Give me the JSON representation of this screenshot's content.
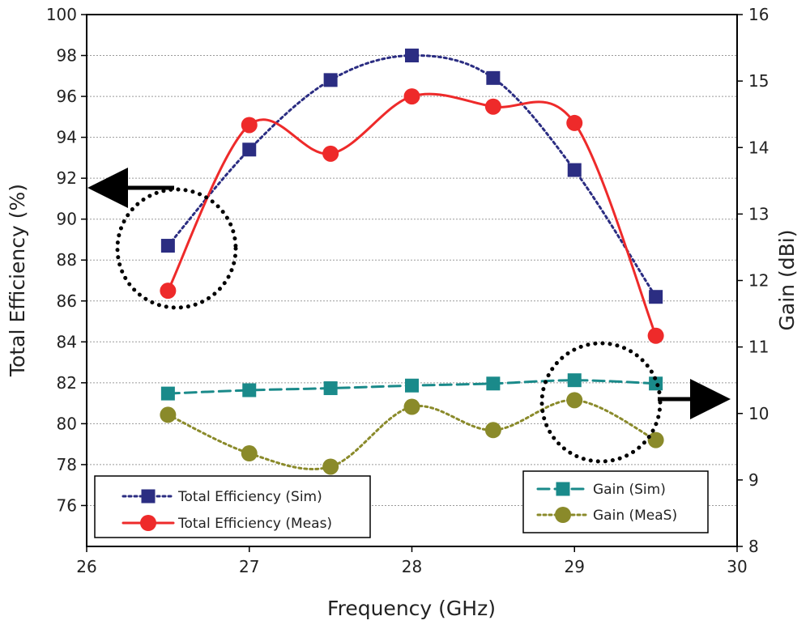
{
  "chart_data": {
    "type": "line",
    "xlabel": "Frequency (GHz)",
    "ylabel_left": "Total Efficiency (%)",
    "ylabel_right": "Gain (dBi)",
    "xlim": [
      26,
      30
    ],
    "ylim_left": [
      74,
      100
    ],
    "ylim_right": [
      8,
      16
    ],
    "x_ticks": [
      "26",
      "27",
      "28",
      "29",
      "30"
    ],
    "y_left_ticks": [
      "76",
      "78",
      "80",
      "82",
      "84",
      "86",
      "88",
      "90",
      "92",
      "94",
      "96",
      "98",
      "100"
    ],
    "y_right_ticks": [
      "8",
      "9",
      "10",
      "11",
      "12",
      "13",
      "14",
      "15",
      "16"
    ],
    "grid": "horizontal dotted",
    "x": [
      26.5,
      27,
      27.5,
      28,
      28.5,
      29,
      29.5
    ],
    "series": [
      {
        "name": "Total Efficiency (Sim)",
        "axis": "left",
        "values": [
          88.7,
          93.4,
          96.8,
          98.0,
          96.9,
          92.4,
          86.2
        ],
        "color": "#2b2d82",
        "marker": "square",
        "line": "dotted"
      },
      {
        "name": "Total Efficiency (Meas)",
        "axis": "left",
        "values": [
          86.5,
          94.6,
          93.2,
          96.0,
          95.5,
          94.7,
          84.3
        ],
        "color": "#ee2a2a",
        "marker": "circle",
        "line": "solid"
      },
      {
        "name": "Gain (Sim)",
        "axis": "right",
        "values": [
          10.3,
          10.35,
          10.38,
          10.42,
          10.45,
          10.5,
          10.45
        ],
        "color": "#1a8a8a",
        "marker": "square",
        "line": "dashed"
      },
      {
        "name": "Gain (MeaS)",
        "axis": "right",
        "values": [
          9.98,
          9.4,
          9.2,
          10.1,
          9.75,
          10.2,
          9.6
        ],
        "color": "#8a8a2a",
        "marker": "circle",
        "line": "dotted"
      }
    ],
    "annotations": [
      {
        "type": "dotted-circle-with-arrow",
        "target_series": [
          "Total Efficiency (Sim)",
          "Total Efficiency (Meas)"
        ],
        "points_to": "left axis"
      },
      {
        "type": "dotted-circle-with-arrow",
        "target_series": [
          "Gain (Sim)",
          "Gain (MeaS)"
        ],
        "points_to": "right axis"
      }
    ],
    "legends": [
      {
        "placement": "bottom-left",
        "entries": [
          "Total Efficiency (Sim)",
          "Total Efficiency (Meas)"
        ]
      },
      {
        "placement": "bottom-right",
        "entries": [
          "Gain (Sim)",
          "Gain (MeaS)"
        ]
      }
    ]
  }
}
